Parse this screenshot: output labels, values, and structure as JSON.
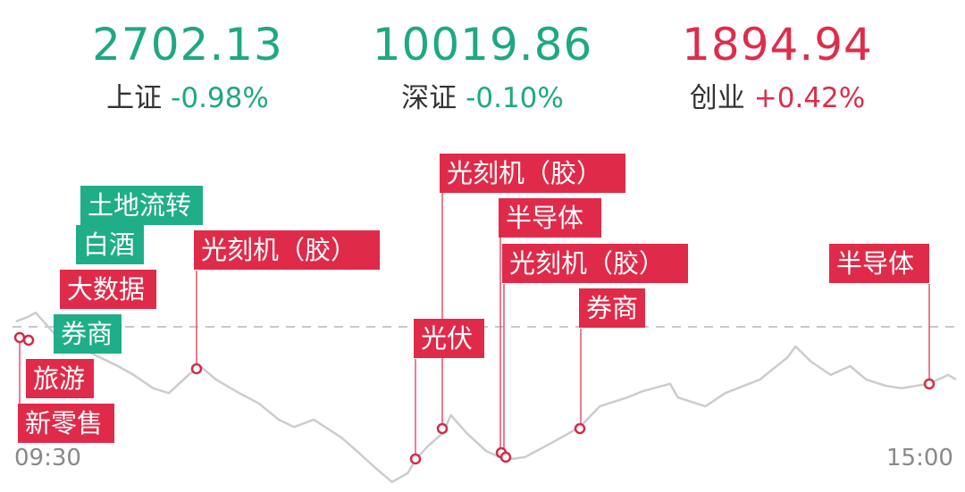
{
  "indices": [
    {
      "name": "上证",
      "value": "2702.13",
      "change": "-0.98%",
      "color": "#1ea883"
    },
    {
      "name": "深证",
      "value": "10019.86",
      "change": "-0.10%",
      "color": "#1ea883"
    },
    {
      "name": "创业",
      "value": "1894.94",
      "change": "+0.42%",
      "color": "#de2d4c"
    }
  ],
  "chart_data": {
    "type": "line",
    "x_unit": "minutes since open",
    "y_unit": "percent change",
    "xtick_labels": [
      "09:30",
      "15:00"
    ],
    "baseline": 0,
    "series": [
      {
        "color": "#cccccc",
        "points": [
          [
            0,
            0.11
          ],
          [
            3,
            0.2
          ],
          [
            5,
            0.29
          ],
          [
            7,
            0.11
          ],
          [
            10,
            -0.16
          ],
          [
            14,
            -0.35
          ],
          [
            19,
            -0.53
          ],
          [
            26,
            -0.8
          ],
          [
            30,
            -0.98
          ],
          [
            35,
            -1.25
          ],
          [
            39,
            -1.35
          ],
          [
            44,
            -0.98
          ],
          [
            47,
            -0.8
          ],
          [
            51,
            -1.07
          ],
          [
            57,
            -1.35
          ],
          [
            62,
            -1.56
          ],
          [
            67,
            -1.89
          ],
          [
            71,
            -2.04
          ],
          [
            76,
            -1.89
          ],
          [
            83,
            -2.25
          ],
          [
            87,
            -2.53
          ],
          [
            92,
            -2.89
          ],
          [
            96,
            -3.16
          ],
          [
            100,
            -2.98
          ],
          [
            102,
            -2.71
          ],
          [
            105,
            -2.44
          ],
          [
            109,
            -2.16
          ],
          [
            111,
            -1.8
          ],
          [
            115,
            -2.16
          ],
          [
            120,
            -2.53
          ],
          [
            125,
            -2.71
          ],
          [
            130,
            -2.65
          ],
          [
            137,
            -2.35
          ],
          [
            144,
            -2.04
          ],
          [
            149,
            -1.62
          ],
          [
            156,
            -1.44
          ],
          [
            160,
            -1.31
          ],
          [
            167,
            -1.16
          ],
          [
            169,
            -1.44
          ],
          [
            176,
            -1.62
          ],
          [
            181,
            -1.35
          ],
          [
            190,
            -1.07
          ],
          [
            197,
            -0.62
          ],
          [
            199,
            -0.4
          ],
          [
            203,
            -0.71
          ],
          [
            208,
            -0.98
          ],
          [
            213,
            -0.8
          ],
          [
            217,
            -1.07
          ],
          [
            222,
            -1.2
          ],
          [
            226,
            -1.25
          ],
          [
            233,
            -1.16
          ],
          [
            238,
            -0.98
          ],
          [
            240,
            -1.07
          ]
        ]
      }
    ],
    "events": [
      {
        "label": "土地流转",
        "type": "green"
      },
      {
        "label": "白酒",
        "type": "green"
      },
      {
        "label": "大数据",
        "type": "red"
      },
      {
        "label": "券商",
        "type": "green"
      },
      {
        "label": "旅游",
        "type": "red"
      },
      {
        "label": "新零售",
        "type": "red"
      },
      {
        "label": "光刻机（胶）",
        "type": "red"
      },
      {
        "label": "光伏",
        "type": "red"
      },
      {
        "label": "光刻机（胶）",
        "type": "red"
      },
      {
        "label": "半导体",
        "type": "red"
      },
      {
        "label": "光刻机（胶）",
        "type": "red"
      },
      {
        "label": "券商",
        "type": "red"
      },
      {
        "label": "半导体",
        "type": "red"
      }
    ]
  }
}
